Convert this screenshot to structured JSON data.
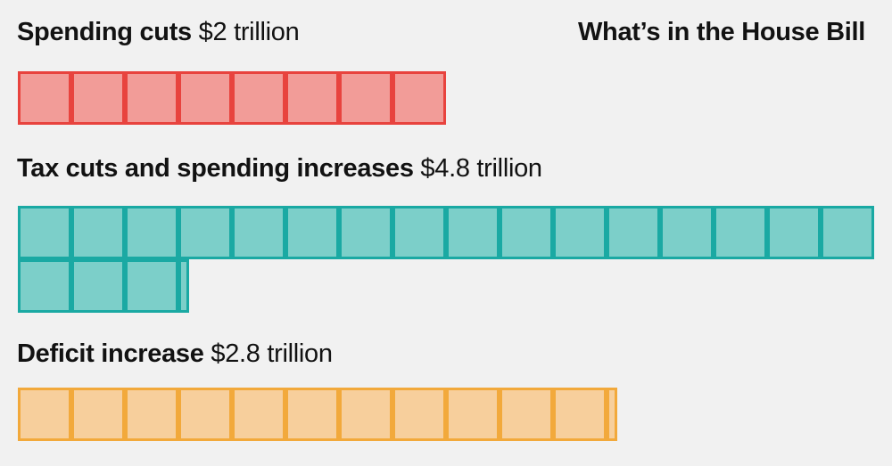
{
  "title": "What’s in the House Bill",
  "chart_data": {
    "type": "waffle",
    "title": "What’s in the House Bill",
    "unit_note": "",
    "series": [
      {
        "name": "Spending cuts",
        "amount_label": "$2 trillion",
        "value": 2.0,
        "color": "#f29c98",
        "stroke": "#e8433e"
      },
      {
        "name": "Tax cuts and spending increases",
        "amount_label": "$4.8 trillion",
        "value": 4.8,
        "color": "#7ccfc9",
        "stroke": "#1aa9a3"
      },
      {
        "name": "Deficit increase",
        "amount_label": "$2.8 trillion",
        "value": 2.8,
        "color": "#f7cf9c",
        "stroke": "#f2a93b"
      }
    ]
  }
}
